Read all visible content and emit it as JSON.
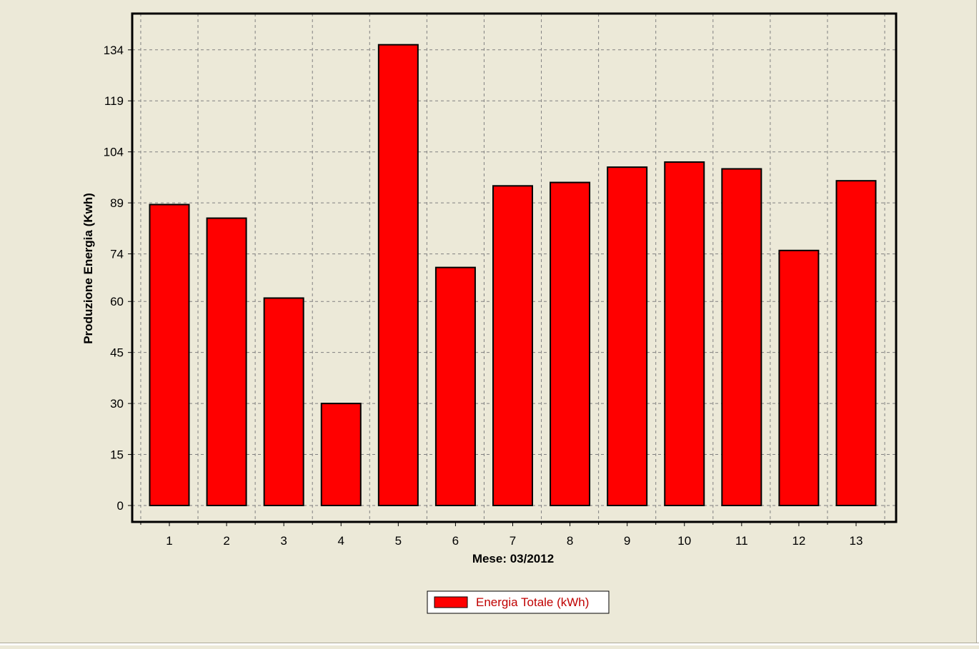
{
  "chart_data": {
    "type": "bar",
    "xlabel": "Mese: 03/2012",
    "ylabel": "Produzione Energia (Kwh)",
    "categories": [
      "1",
      "2",
      "3",
      "4",
      "5",
      "6",
      "7",
      "8",
      "9",
      "10",
      "11",
      "12",
      "13"
    ],
    "series": [
      {
        "name": "Energia Totale (kWh)",
        "values": [
          88.5,
          84.5,
          61.0,
          30.0,
          135.5,
          70.0,
          94.0,
          95.0,
          99.5,
          101.0,
          99.0,
          75.0,
          95.5
        ]
      }
    ],
    "yticks": [
      "0",
      "15",
      "30",
      "45",
      "60",
      "74",
      "89",
      "104",
      "119",
      "134"
    ],
    "ylim": [
      0,
      144.5
    ],
    "grid": true,
    "legend_position": "bottom-center",
    "colors": {
      "bar_fill": "#FF0000",
      "bar_stroke": "#000000",
      "plot_bg": "#ECE9D8",
      "grid": "#808080",
      "legend_text": "#C00000"
    }
  }
}
